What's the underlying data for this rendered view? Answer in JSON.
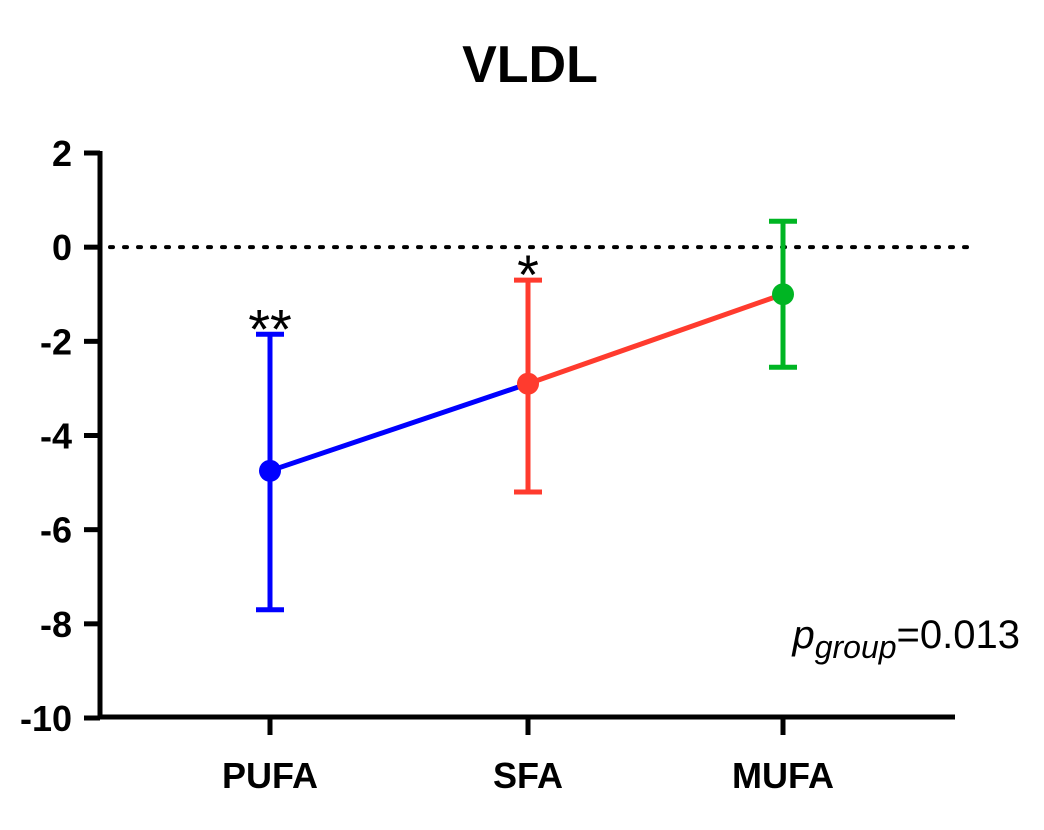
{
  "chart_data": {
    "type": "line",
    "title": "VLDL",
    "xlabel": "",
    "ylabel": "",
    "categories": [
      "PUFA",
      "SFA",
      "MUFA"
    ],
    "ylim": [
      -10,
      2
    ],
    "yticks": [
      2,
      0,
      -2,
      -4,
      -6,
      -8,
      -10
    ],
    "reference_line": 0,
    "points": [
      {
        "category": "PUFA",
        "value": -4.75,
        "lower": -7.7,
        "upper": -1.85,
        "color": "#0000ff",
        "significance": "**"
      },
      {
        "category": "SFA",
        "value": -2.9,
        "lower": -5.2,
        "upper": -0.7,
        "color": "#ff3b2e",
        "significance": "*"
      },
      {
        "category": "MUFA",
        "value": -1.0,
        "lower": -2.55,
        "upper": 0.55,
        "color": "#00b523",
        "significance": ""
      }
    ],
    "segments": [
      {
        "from": "PUFA",
        "to": "SFA",
        "color": "#0000ff"
      },
      {
        "from": "SFA",
        "to": "MUFA",
        "color": "#ff3b2e"
      }
    ],
    "annotation": {
      "p": "p",
      "sub": "group",
      "value": "=0.013"
    }
  }
}
